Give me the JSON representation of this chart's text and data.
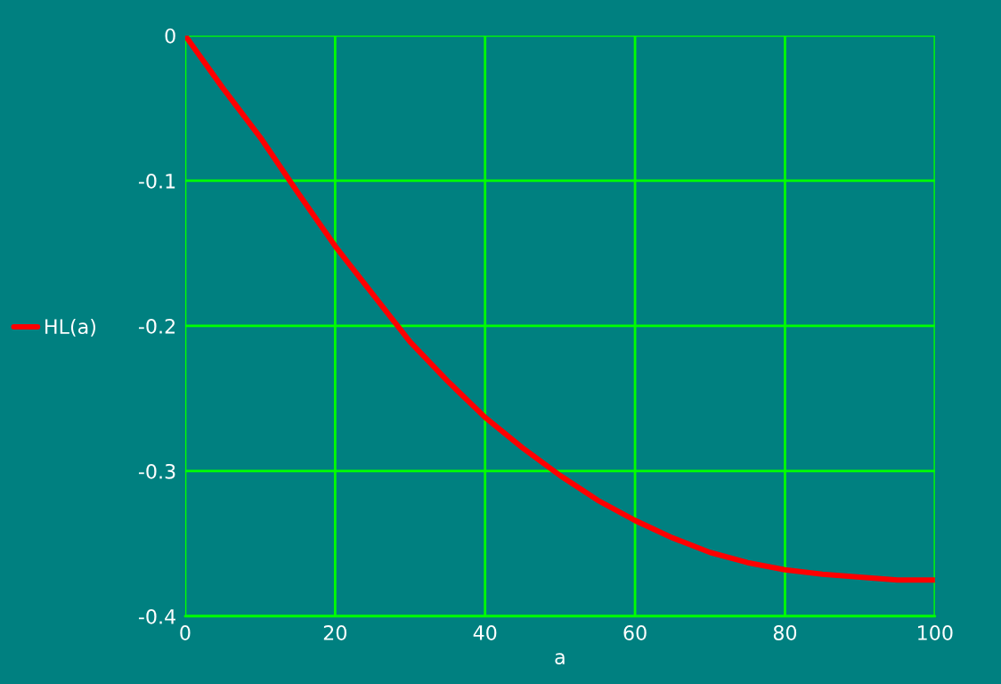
{
  "chart_data": {
    "type": "line",
    "xlabel": "a",
    "x": [
      0,
      5,
      10,
      15,
      20,
      25,
      30,
      35,
      40,
      45,
      50,
      55,
      60,
      65,
      70,
      75,
      80,
      85,
      90,
      95,
      100
    ],
    "series": [
      {
        "name": "HL(a)",
        "color": "#ff0000",
        "values": [
          0,
          -0.036,
          -0.07,
          -0.108,
          -0.145,
          -0.178,
          -0.211,
          -0.238,
          -0.263,
          -0.284,
          -0.303,
          -0.32,
          -0.334,
          -0.346,
          -0.356,
          -0.363,
          -0.368,
          -0.371,
          -0.373,
          -0.375,
          -0.375
        ]
      }
    ],
    "xlim": [
      0,
      100
    ],
    "ylim": [
      -0.4,
      0
    ],
    "xticks": [
      0,
      20,
      40,
      60,
      80,
      100
    ],
    "yticks": [
      0,
      -0.1,
      -0.2,
      -0.3,
      -0.4
    ],
    "grid": true,
    "legend": "left",
    "marker": "none",
    "line_style": "solid"
  }
}
